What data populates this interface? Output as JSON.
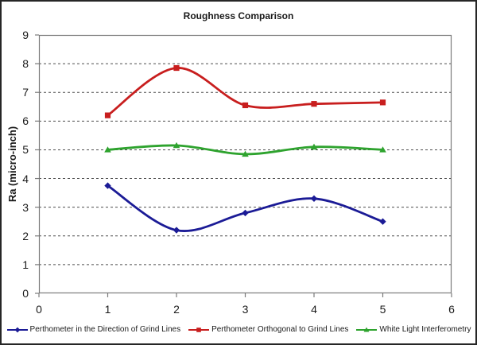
{
  "chart_data": {
    "type": "line",
    "title": "Roughness Comparison",
    "ylabel": "Ra (micro-inch)",
    "xlabel": "",
    "x": [
      1,
      2,
      3,
      4,
      5
    ],
    "xlim": [
      0,
      6
    ],
    "ylim": [
      0,
      9
    ],
    "x_ticks": [
      0,
      1,
      2,
      3,
      4,
      5,
      6
    ],
    "y_ticks": [
      0,
      1,
      2,
      3,
      4,
      5,
      6,
      7,
      8,
      9
    ],
    "grid": "horizontal-dashed",
    "smooth": true,
    "legend_position": "bottom",
    "series": [
      {
        "name": "Perthometer in the Direction of Grind Lines",
        "color": "#1B1B96",
        "marker": "diamond",
        "values": [
          3.75,
          2.2,
          2.8,
          3.3,
          2.5
        ]
      },
      {
        "name": "Perthometer Orthogonal to Grind Lines",
        "color": "#C81E1E",
        "marker": "square",
        "values": [
          6.2,
          7.85,
          6.55,
          6.6,
          6.65
        ]
      },
      {
        "name": "White Light Interferometry",
        "color": "#2EA32E",
        "marker": "triangle",
        "values": [
          5.0,
          5.15,
          4.85,
          5.1,
          5.0
        ]
      }
    ],
    "colors": {
      "grid": "#4d4d4d",
      "frame": "#7a7a7a",
      "text": "#1a1a1a"
    }
  }
}
